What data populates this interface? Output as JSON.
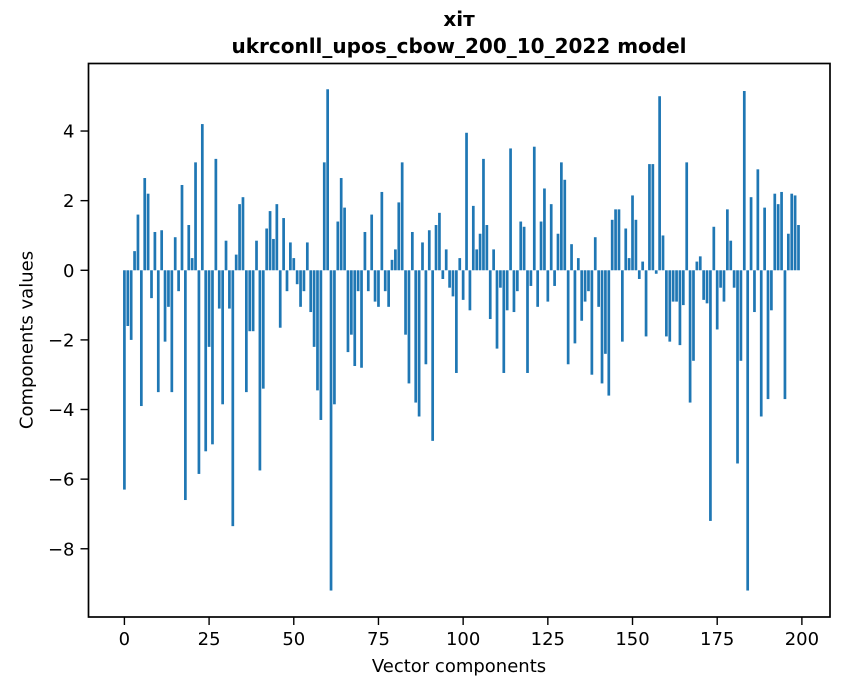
{
  "window": {
    "background": "#ffffff"
  },
  "chart_data": {
    "type": "bar",
    "title": "хіт",
    "subtitle": "ukrconll_upos_cbow_200_10_2022 model",
    "xlabel": "Vector components",
    "ylabel": "Components values",
    "legend": null,
    "grid": false,
    "bar_color": "#1f77b4",
    "axis_color": "#000000",
    "x_ticks": [
      0,
      25,
      50,
      75,
      100,
      125,
      150,
      175,
      200
    ],
    "y_ticks": [
      4,
      2,
      0,
      -2,
      -4,
      -6,
      -8
    ],
    "xlim": [
      -10.6,
      208.3
    ],
    "ylim": [
      -9.96,
      5.94
    ],
    "x_start": 0,
    "values": [
      -6.3,
      -1.6,
      -2.0,
      0.55,
      1.6,
      -3.9,
      2.65,
      2.2,
      -0.8,
      1.1,
      -3.5,
      1.15,
      -2.05,
      -1.05,
      -3.5,
      0.95,
      -0.6,
      2.45,
      -6.6,
      1.3,
      0.35,
      3.1,
      -5.85,
      4.2,
      -5.2,
      -2.2,
      -5.0,
      3.2,
      -1.1,
      -3.85,
      0.85,
      -1.1,
      -7.35,
      0.45,
      1.9,
      2.1,
      -3.5,
      -1.75,
      -1.75,
      0.85,
      -5.75,
      -3.4,
      1.2,
      1.7,
      0.9,
      1.9,
      -1.65,
      1.5,
      -0.6,
      0.8,
      0.35,
      -0.4,
      -1.05,
      -0.6,
      0.8,
      -1.2,
      -2.2,
      -3.45,
      -4.3,
      3.1,
      5.2,
      -9.2,
      -3.85,
      1.4,
      2.65,
      1.8,
      -2.35,
      -1.85,
      -2.75,
      -0.6,
      -2.8,
      1.1,
      -0.6,
      1.6,
      -0.9,
      -1.05,
      2.25,
      -0.6,
      -1.05,
      0.3,
      0.6,
      1.95,
      3.1,
      -1.85,
      -3.25,
      1.1,
      -3.8,
      -4.2,
      0.8,
      -2.7,
      1.15,
      -4.9,
      1.3,
      1.65,
      -0.25,
      0.6,
      -0.5,
      -0.75,
      -2.95,
      0.35,
      -0.85,
      3.95,
      -1.15,
      1.85,
      0.6,
      1.05,
      3.2,
      1.3,
      -1.4,
      0.6,
      -2.25,
      -0.5,
      -2.95,
      -1.15,
      3.5,
      -1.2,
      -0.6,
      1.4,
      1.25,
      -2.95,
      -0.45,
      3.55,
      -1.05,
      1.4,
      2.35,
      -0.9,
      1.9,
      -0.45,
      1.05,
      3.1,
      2.6,
      -2.7,
      0.75,
      -2.1,
      0.35,
      -1.45,
      -0.9,
      -0.6,
      -3.0,
      0.95,
      -1.05,
      -3.25,
      -2.4,
      -3.6,
      1.45,
      1.75,
      1.75,
      -2.05,
      1.2,
      0.35,
      2.15,
      1.45,
      -0.25,
      0.25,
      -1.9,
      3.05,
      3.05,
      -0.1,
      5.0,
      1.0,
      -1.9,
      -2.05,
      -0.9,
      -0.9,
      -2.15,
      -1.0,
      3.1,
      -3.8,
      -2.6,
      0.25,
      0.4,
      -0.85,
      -0.95,
      -7.2,
      1.25,
      -1.7,
      -0.5,
      -0.9,
      1.75,
      0.85,
      -0.5,
      -5.55,
      -2.6,
      5.15,
      -9.2,
      2.1,
      -1.2,
      2.9,
      -4.2,
      1.8,
      -3.7,
      -1.15,
      2.2,
      1.9,
      2.25,
      -3.7,
      1.05,
      2.2,
      2.15,
      1.3
    ]
  }
}
